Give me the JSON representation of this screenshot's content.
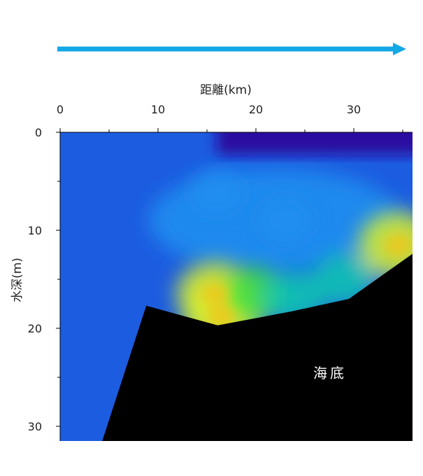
{
  "chart_data": {
    "type": "heatmap",
    "xlabel": "距離(km)",
    "ylabel": "水深(m)",
    "x_ticks": [
      "0",
      "10",
      "20",
      "30"
    ],
    "y_ticks": [
      "0",
      "10",
      "20",
      "30"
    ],
    "xlim": [
      0,
      36
    ],
    "ylim": [
      0,
      31.5
    ],
    "x_axis_position": "top",
    "y_axis_inverted": true,
    "grid": false,
    "direction_arrow": {
      "color": "#14a8e6",
      "direction": "right"
    },
    "colormap": [
      "#2a0fa0",
      "#1c5ce0",
      "#1f8ef0",
      "#12c8b0",
      "#40e040",
      "#d8f030",
      "#f0c818"
    ],
    "seabed": {
      "label": "海底",
      "color": "#000000",
      "profile": [
        [
          4.3,
          31.5
        ],
        [
          8.8,
          17.7
        ],
        [
          16.1,
          19.7
        ],
        [
          23.5,
          18.3
        ],
        [
          29.5,
          17.0
        ],
        [
          36,
          12.4
        ]
      ]
    },
    "hotspots": [
      {
        "x": 15.8,
        "y": 16.5,
        "value": 0.82
      },
      {
        "x": 16.5,
        "y": 18.8,
        "value": 0.85
      },
      {
        "x": 19.8,
        "y": 16.5,
        "value": 0.6
      },
      {
        "x": 24.0,
        "y": 16.8,
        "value": 0.55
      },
      {
        "x": 29.0,
        "y": 15.0,
        "value": 0.55
      },
      {
        "x": 34.5,
        "y": 11.5,
        "value": 0.85
      },
      {
        "x": 23.0,
        "y": 9.0,
        "value": 0.4
      },
      {
        "x": 16.0,
        "y": 6.0,
        "value": 0.35
      }
    ],
    "surface_layer": {
      "value": 0.0,
      "x_from": 16,
      "x_to": 36,
      "depth_to": 2.3
    }
  }
}
